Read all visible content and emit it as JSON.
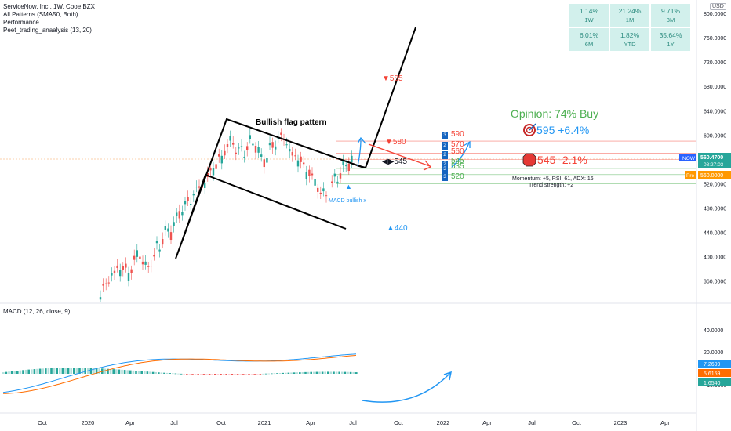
{
  "header": {
    "title": "ServiceNow, Inc., 1W, Cboe BZX",
    "indicators": [
      "All Patterns (SMA50, Both)",
      "Performance",
      "Peet_trading_anaalysis (13, 20)"
    ],
    "currency": "USD"
  },
  "performance": [
    {
      "value": "1.14%",
      "period": "1W"
    },
    {
      "value": "21.24%",
      "period": "1M"
    },
    {
      "value": "9.71%",
      "period": "3M"
    },
    {
      "value": "6.01%",
      "period": "6M"
    },
    {
      "value": "1.82%",
      "period": "YTD"
    },
    {
      "value": "35.64%",
      "period": "1Y"
    }
  ],
  "annotations": {
    "pattern_label": "Bullish flag pattern",
    "opinion": "Opinion: 74% Buy",
    "target_up": "595 +6.4%",
    "stop": "545 -2.1%",
    "down_585": "▼585",
    "down_580": "▼580",
    "mid_545": "◀▶545",
    "up_440": "▲440",
    "macd_cross": "MACD bullish x",
    "momentum": "Momentum: +5, RSI: 61, ADX: 16",
    "trend": "Trend strength: +2",
    "levels": [
      {
        "tag": "3",
        "value": "590"
      },
      {
        "tag": "2",
        "value": "570"
      },
      {
        "tag": "2",
        "value": "560"
      },
      {
        "tag": "2",
        "value": "545"
      },
      {
        "tag": "3",
        "value": "535"
      },
      {
        "tag": "3",
        "value": "520"
      }
    ]
  },
  "price_axis": {
    "ticks": [
      "800.0000",
      "760.0000",
      "720.0000",
      "680.0000",
      "640.0000",
      "600.0000",
      "560.0000",
      "520.0000",
      "480.0000",
      "440.0000",
      "400.0000",
      "360.0000"
    ],
    "symbol_tag": "NOW",
    "last_price": "560.4700",
    "countdown": "08:27:03",
    "pre_label": "Pre",
    "pre_price": "560.0000"
  },
  "macd": {
    "label": "MACD (12, 26, close, 9)",
    "ticks": [
      "40.0000",
      "20.0000",
      "−10.0000"
    ],
    "values": [
      "7.2699",
      "5.6159",
      "1.6540"
    ]
  },
  "time_axis": [
    "Oct",
    "2020",
    "Apr",
    "Jul",
    "Oct",
    "2021",
    "Apr",
    "Jul",
    "Oct",
    "2022",
    "Apr",
    "Jul",
    "Oct",
    "2023",
    "Apr"
  ],
  "colors": {
    "up": "#26a69a",
    "down": "#ef5350",
    "macd": "#2196f3",
    "signal": "#ff6d00",
    "resist": "#f44336",
    "support": "#4caf50"
  },
  "chart_data": {
    "type": "candlestick",
    "title": "ServiceNow, Inc., 1W, Cboe BZX",
    "ylim": [
      330,
      815
    ],
    "last_price": 560.47,
    "support_resistance": [
      590,
      570,
      560,
      545,
      535,
      520
    ]
  }
}
